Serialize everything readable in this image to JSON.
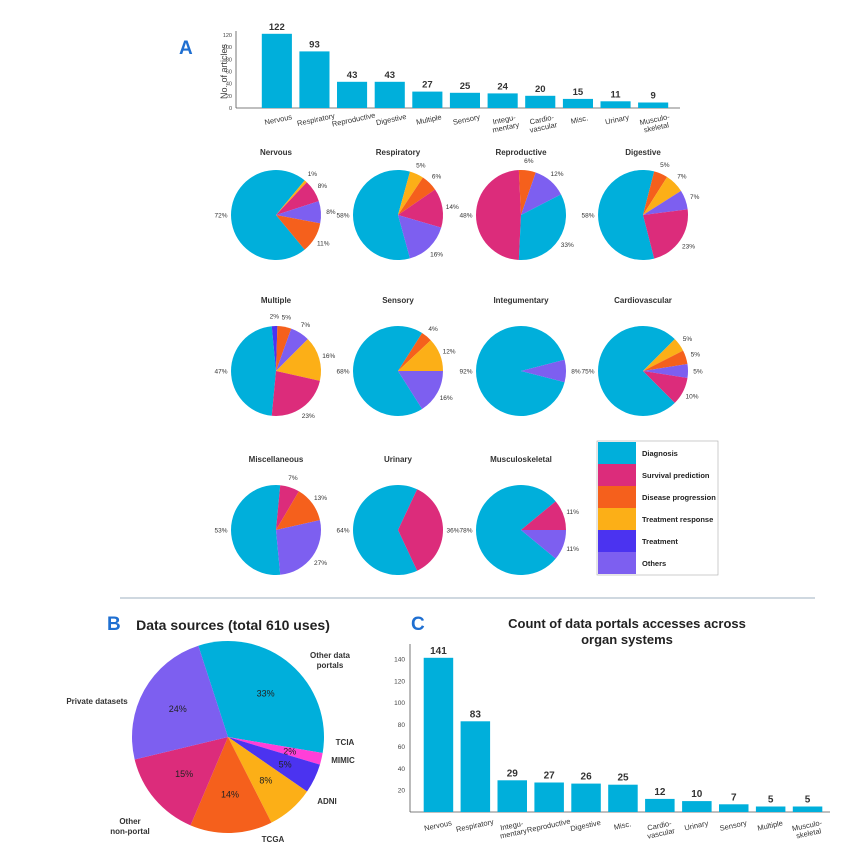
{
  "panel_labels": {
    "a": "A",
    "b": "B",
    "c": "C"
  },
  "colors": {
    "diagnosis": "#00afdb",
    "survival": "#dc2c7b",
    "progression": "#f5601c",
    "treatment_response": "#fcaf17",
    "treatment": "#4b33f0",
    "others": "#7d5ff0",
    "tcia": "#ff3fd8",
    "bar": "#00afdb",
    "panel_letter": "#1f6fd1",
    "divider": "#cfd8e0"
  },
  "chart_data": [
    {
      "id": "A_bar",
      "type": "bar",
      "title": "",
      "ylabel": "No. of articles",
      "xlabel": "",
      "ylim": [
        0,
        120
      ],
      "yticks": [
        0,
        20,
        40,
        60,
        80,
        100,
        120
      ],
      "categories": [
        "Nervous",
        "Respiratory",
        "Reproductive",
        "Digestive",
        "Multiple",
        "Sensory",
        "Integu-\nmentary",
        "Cardio-\nvascular",
        "Misc.",
        "Urinary",
        "Musculo-\nskeletal"
      ],
      "values": [
        122,
        93,
        43,
        43,
        27,
        25,
        24,
        20,
        15,
        11,
        9
      ]
    },
    {
      "id": "A_pies",
      "type": "pie",
      "legend": [
        "Diagnosis",
        "Survival prediction",
        "Disease progression",
        "Treatment response",
        "Treatment",
        "Others"
      ],
      "pies": [
        {
          "title": "Nervous",
          "slices": [
            {
              "cat": "diagnosis",
              "value": 72,
              "label": "72%"
            },
            {
              "cat": "treatment_response",
              "value": 1,
              "label": "1%"
            },
            {
              "cat": "survival",
              "value": 8,
              "label": "8%"
            },
            {
              "cat": "others",
              "value": 8,
              "label": "8%"
            },
            {
              "cat": "progression",
              "value": 11,
              "label": "11%"
            }
          ]
        },
        {
          "title": "Respiratory",
          "slices": [
            {
              "cat": "diagnosis",
              "value": 58,
              "label": "58%"
            },
            {
              "cat": "treatment_response",
              "value": 5,
              "label": "5%"
            },
            {
              "cat": "progression",
              "value": 6,
              "label": "6%"
            },
            {
              "cat": "survival",
              "value": 14,
              "label": "14%"
            },
            {
              "cat": "others",
              "value": 16,
              "label": "16%"
            }
          ]
        },
        {
          "title": "Reproductive",
          "slices": [
            {
              "cat": "survival",
              "value": 48,
              "label": "48%"
            },
            {
              "cat": "progression",
              "value": 6,
              "label": "6%"
            },
            {
              "cat": "others",
              "value": 12,
              "label": "12%"
            },
            {
              "cat": "diagnosis",
              "value": 33,
              "label": "33%"
            }
          ]
        },
        {
          "title": "Digestive",
          "slices": [
            {
              "cat": "diagnosis",
              "value": 58,
              "label": "58%"
            },
            {
              "cat": "progression",
              "value": 5,
              "label": "5%"
            },
            {
              "cat": "treatment_response",
              "value": 7,
              "label": "7%"
            },
            {
              "cat": "others",
              "value": 7,
              "label": "7%"
            },
            {
              "cat": "survival",
              "value": 23,
              "label": "23%"
            }
          ]
        },
        {
          "title": "Multiple",
          "slices": [
            {
              "cat": "diagnosis",
              "value": 47,
              "label": "47%"
            },
            {
              "cat": "treatment",
              "value": 2,
              "label": "2%"
            },
            {
              "cat": "progression",
              "value": 5,
              "label": "5%"
            },
            {
              "cat": "others",
              "value": 7,
              "label": "7%"
            },
            {
              "cat": "treatment_response",
              "value": 16,
              "label": "16%"
            },
            {
              "cat": "survival",
              "value": 23,
              "label": "23%"
            }
          ]
        },
        {
          "title": "Sensory",
          "slices": [
            {
              "cat": "diagnosis",
              "value": 68,
              "label": "68%"
            },
            {
              "cat": "progression",
              "value": 4,
              "label": "4%"
            },
            {
              "cat": "treatment_response",
              "value": 12,
              "label": "12%"
            },
            {
              "cat": "others",
              "value": 16,
              "label": "16%"
            }
          ]
        },
        {
          "title": "Integumentary",
          "slices": [
            {
              "cat": "diagnosis",
              "value": 92,
              "label": "92%"
            },
            {
              "cat": "others",
              "value": 8,
              "label": "8%"
            }
          ]
        },
        {
          "title": "Cardiovascular",
          "slices": [
            {
              "cat": "diagnosis",
              "value": 75,
              "label": "75%"
            },
            {
              "cat": "treatment_response",
              "value": 5,
              "label": "5%"
            },
            {
              "cat": "progression",
              "value": 5,
              "label": "5%"
            },
            {
              "cat": "others",
              "value": 5,
              "label": "5%"
            },
            {
              "cat": "survival",
              "value": 10,
              "label": "10%"
            }
          ]
        },
        {
          "title": "Miscellaneous",
          "slices": [
            {
              "cat": "diagnosis",
              "value": 53,
              "label": "53%"
            },
            {
              "cat": "survival",
              "value": 7,
              "label": "7%"
            },
            {
              "cat": "progression",
              "value": 13,
              "label": "13%"
            },
            {
              "cat": "others",
              "value": 27,
              "label": "27%"
            }
          ]
        },
        {
          "title": "Urinary",
          "slices": [
            {
              "cat": "diagnosis",
              "value": 64,
              "label": "64%"
            },
            {
              "cat": "survival",
              "value": 36,
              "label": "36%"
            }
          ]
        },
        {
          "title": "Musculoskeletal",
          "slices": [
            {
              "cat": "diagnosis",
              "value": 78,
              "label": "78%"
            },
            {
              "cat": "survival",
              "value": 11,
              "label": "11%"
            },
            {
              "cat": "others",
              "value": 11,
              "label": "11%"
            }
          ]
        }
      ]
    },
    {
      "id": "B_pie",
      "type": "pie",
      "title": "Data sources (total 610 uses)",
      "slices": [
        {
          "name": "Other data\nportals",
          "value": 33,
          "label": "33%",
          "color": "#00afdb"
        },
        {
          "name": "TCIA",
          "value": 2,
          "label": "2%",
          "color": "#ff3fd8"
        },
        {
          "name": "MIMIC",
          "value": 5,
          "label": "5%",
          "color": "#4b33f0"
        },
        {
          "name": "ADNI",
          "value": 8,
          "label": "8%",
          "color": "#fcaf17"
        },
        {
          "name": "TCGA",
          "value": 14,
          "label": "14%",
          "color": "#f5601c"
        },
        {
          "name": "Other\nnon-portal",
          "value": 15,
          "label": "15%",
          "color": "#dc2c7b"
        },
        {
          "name": "Private datasets",
          "value": 24,
          "label": "24%",
          "color": "#7d5ff0"
        }
      ]
    },
    {
      "id": "C_bar",
      "type": "bar",
      "title": "Count of data portals accesses across\norgan systems",
      "xlabel": "",
      "ylabel": "",
      "ylim": [
        0,
        150
      ],
      "yticks": [
        20,
        40,
        60,
        80,
        100,
        120,
        140
      ],
      "categories": [
        "Nervous",
        "Respiratory",
        "Integu-\nmentary",
        "Reproductive",
        "Digestive",
        "Misc.",
        "Cardio-\nvascular",
        "Urinary",
        "Sensory",
        "Multiple",
        "Musculo-\nskeletal"
      ],
      "values": [
        141,
        83,
        29,
        27,
        26,
        25,
        12,
        10,
        7,
        5,
        5
      ]
    }
  ]
}
